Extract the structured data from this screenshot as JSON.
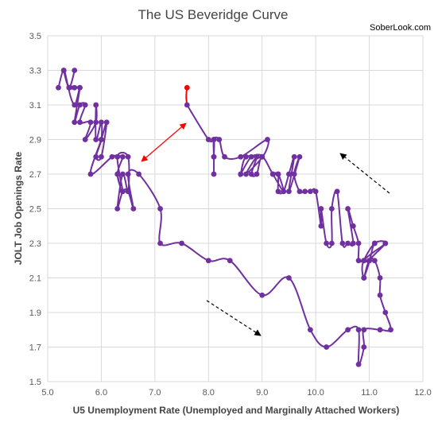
{
  "chart_data": {
    "type": "scatter",
    "title": "The US Beveridge Curve",
    "source_label": "SoberLook.com",
    "xlabel": "U5 Unemployment Rate (Unemployed and Marginally Attached Workers)",
    "ylabel": "JOLT Job Openings Rate",
    "xlim": [
      5.0,
      12.0
    ],
    "ylim": [
      1.5,
      3.5
    ],
    "xticks": [
      "5.0",
      "6.0",
      "7.0",
      "8.0",
      "9.0",
      "10.0",
      "11.0",
      "12.0"
    ],
    "yticks": [
      "1.5",
      "1.7",
      "1.9",
      "2.1",
      "2.3",
      "2.5",
      "2.7",
      "2.9",
      "3.1",
      "3.3",
      "3.5"
    ],
    "grid": "major",
    "series_color": "#7030A0",
    "latest_color": "#FF0000",
    "arrow_color_latest": "#FF0000",
    "arrow_color_trend": "#000000",
    "points": [
      [
        5.2,
        3.2
      ],
      [
        5.3,
        3.3
      ],
      [
        5.4,
        3.2
      ],
      [
        5.5,
        3.3
      ],
      [
        5.4,
        3.2
      ],
      [
        5.3,
        3.3
      ],
      [
        5.4,
        3.2
      ],
      [
        5.5,
        3.2
      ],
      [
        5.6,
        3.2
      ],
      [
        5.4,
        3.2
      ],
      [
        5.5,
        3.1
      ],
      [
        5.6,
        3.2
      ],
      [
        5.5,
        3.0
      ],
      [
        5.6,
        3.1
      ],
      [
        5.7,
        3.1
      ],
      [
        5.6,
        3.0
      ],
      [
        5.8,
        3.0
      ],
      [
        5.7,
        2.9
      ],
      [
        5.9,
        3.0
      ],
      [
        5.9,
        3.1
      ],
      [
        5.9,
        2.9
      ],
      [
        6.0,
        3.0
      ],
      [
        6.0,
        2.9
      ],
      [
        5.9,
        2.8
      ],
      [
        6.0,
        2.8
      ],
      [
        6.1,
        3.0
      ],
      [
        6.0,
        2.9
      ],
      [
        5.8,
        2.7
      ],
      [
        6.2,
        2.8
      ],
      [
        6.3,
        2.8
      ],
      [
        6.4,
        2.8
      ],
      [
        6.3,
        2.7
      ],
      [
        6.4,
        2.6
      ],
      [
        6.3,
        2.8
      ],
      [
        6.5,
        2.8
      ],
      [
        6.5,
        2.6
      ],
      [
        6.4,
        2.7
      ],
      [
        6.3,
        2.5
      ],
      [
        6.4,
        2.6
      ],
      [
        6.5,
        2.6
      ],
      [
        6.6,
        2.5
      ],
      [
        6.5,
        2.7
      ],
      [
        6.7,
        2.7
      ],
      [
        7.1,
        2.5
      ],
      [
        7.1,
        2.3
      ],
      [
        7.5,
        2.3
      ],
      [
        8.0,
        2.2
      ],
      [
        8.4,
        2.2
      ],
      [
        9.0,
        2.0
      ],
      [
        9.5,
        2.1
      ],
      [
        9.9,
        1.8
      ],
      [
        10.2,
        1.7
      ],
      [
        10.6,
        1.8
      ],
      [
        10.8,
        1.8
      ],
      [
        10.8,
        1.6
      ],
      [
        10.9,
        1.7
      ],
      [
        10.9,
        1.8
      ],
      [
        11.2,
        1.8
      ],
      [
        11.4,
        1.8
      ],
      [
        11.3,
        1.9
      ],
      [
        11.2,
        2.0
      ],
      [
        11.2,
        2.1
      ],
      [
        11.1,
        2.2
      ],
      [
        11.0,
        2.2
      ],
      [
        10.9,
        2.1
      ],
      [
        11.0,
        2.2
      ],
      [
        10.9,
        2.2
      ],
      [
        11.1,
        2.3
      ],
      [
        11.3,
        2.3
      ],
      [
        10.9,
        2.2
      ],
      [
        10.9,
        2.1
      ],
      [
        11.0,
        2.2
      ],
      [
        11.3,
        2.3
      ],
      [
        11.1,
        2.3
      ],
      [
        11.0,
        2.2
      ],
      [
        10.9,
        2.2
      ],
      [
        10.8,
        2.2
      ],
      [
        10.8,
        2.3
      ],
      [
        10.7,
        2.4
      ],
      [
        10.6,
        2.5
      ],
      [
        10.7,
        2.3
      ],
      [
        10.6,
        2.3
      ],
      [
        10.5,
        2.3
      ],
      [
        10.4,
        2.6
      ],
      [
        10.3,
        2.5
      ],
      [
        10.3,
        2.3
      ],
      [
        10.2,
        2.3
      ],
      [
        10.1,
        2.5
      ],
      [
        10.1,
        2.4
      ],
      [
        10.0,
        2.6
      ],
      [
        9.9,
        2.6
      ],
      [
        9.8,
        2.6
      ],
      [
        9.7,
        2.6
      ],
      [
        9.6,
        2.7
      ],
      [
        9.7,
        2.8
      ],
      [
        9.5,
        2.6
      ],
      [
        9.6,
        2.8
      ],
      [
        9.5,
        2.7
      ],
      [
        9.4,
        2.6
      ],
      [
        9.3,
        2.6
      ],
      [
        9.3,
        2.7
      ],
      [
        9.2,
        2.7
      ],
      [
        9.3,
        2.7
      ],
      [
        9.4,
        2.6
      ],
      [
        9.2,
        2.7
      ],
      [
        9.0,
        2.8
      ],
      [
        8.9,
        2.7
      ],
      [
        8.8,
        2.7
      ],
      [
        8.9,
        2.8
      ],
      [
        8.7,
        2.7
      ],
      [
        9.0,
        2.8
      ],
      [
        8.8,
        2.8
      ],
      [
        8.6,
        2.7
      ],
      [
        8.6,
        2.7
      ],
      [
        8.7,
        2.8
      ],
      [
        9.0,
        2.8
      ],
      [
        9.1,
        2.9
      ],
      [
        8.6,
        2.8
      ],
      [
        8.3,
        2.8
      ],
      [
        8.2,
        2.9
      ],
      [
        8.1,
        2.9
      ],
      [
        8.1,
        2.8
      ],
      [
        8.1,
        2.7
      ],
      [
        8.1,
        2.8
      ],
      [
        8.1,
        2.9
      ],
      [
        8.0,
        2.9
      ],
      [
        7.6,
        3.1
      ]
    ],
    "latest_point": [
      7.6,
      3.2
    ]
  }
}
